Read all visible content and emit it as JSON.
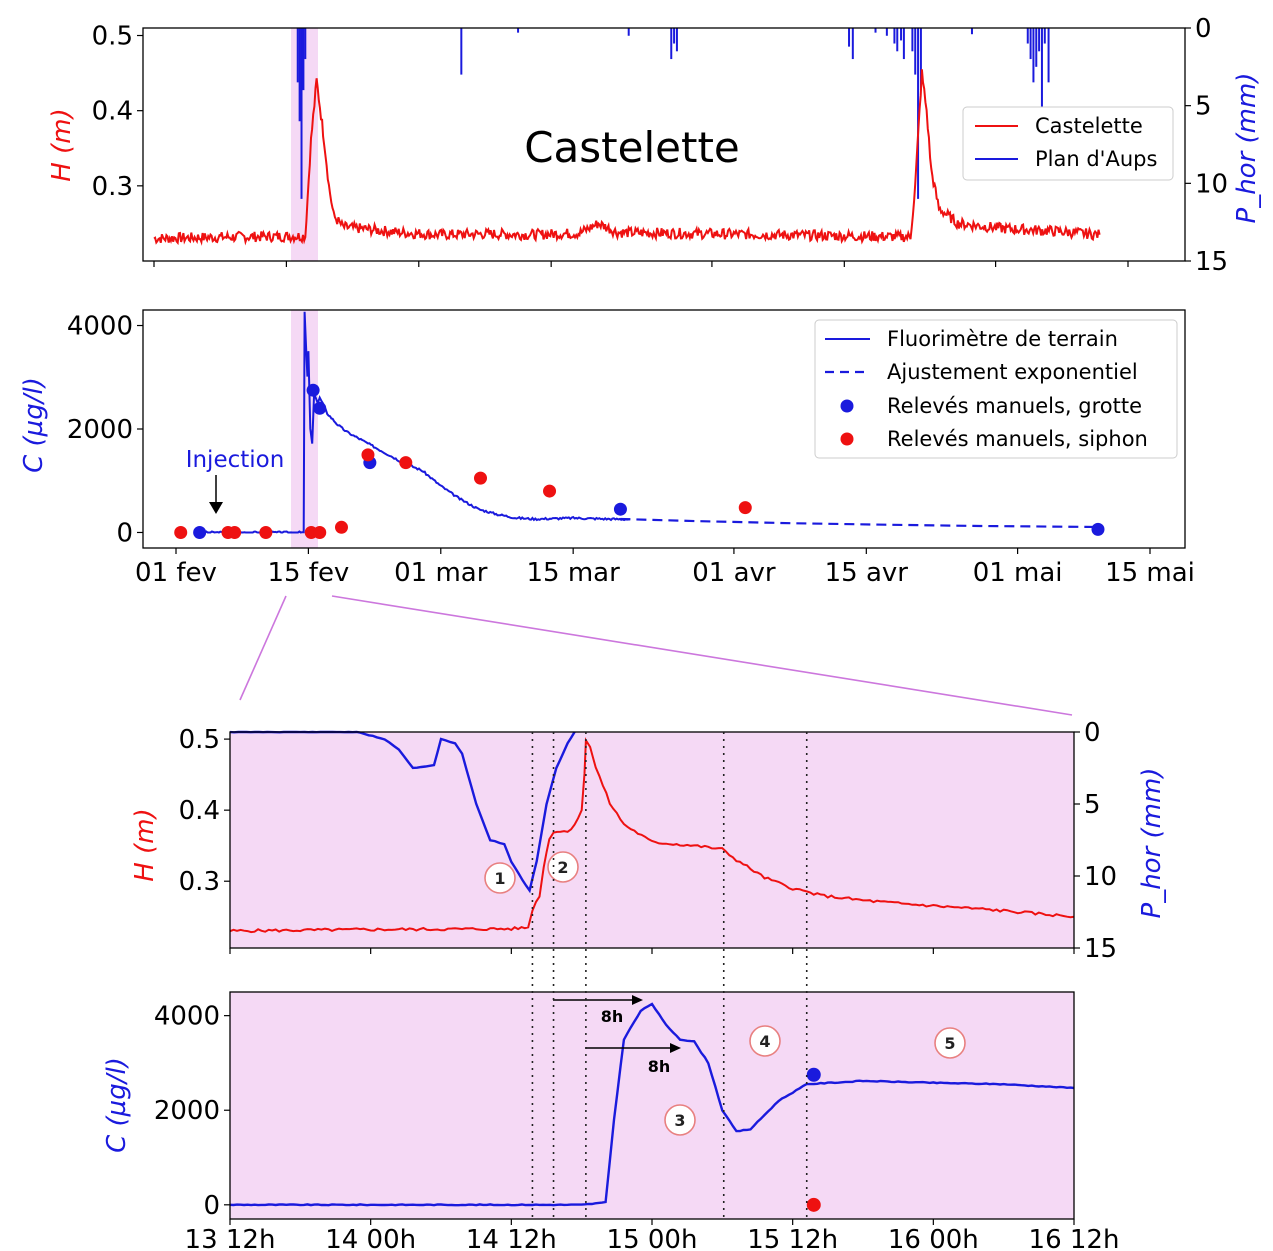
{
  "colors": {
    "height": "#ee1111",
    "conc": "#1a1add",
    "rain": "#1a1add",
    "manual_grotte": "#1a1add",
    "manual_siphon": "#ee1111",
    "highlight": "#f5d9f5",
    "zoom_line": "#cc77dd"
  },
  "chart_data": [
    {
      "type": "line",
      "panel": "top",
      "title": "Castelette",
      "ylabel": "H (m)",
      "ylabel_right": "P_hor (mm)",
      "ylim": [
        0.2,
        0.51
      ],
      "yticks": [
        "0.3",
        "0.4",
        "0.5"
      ],
      "ylim_right": [
        15,
        0
      ],
      "yticks_right": [
        "0",
        "5",
        "10",
        "15"
      ],
      "legend": {
        "position": "center-right",
        "entries": [
          "Castelette",
          "Plan d'Aups"
        ]
      },
      "series": [
        {
          "name": "Castelette",
          "x": [
            0,
            8,
            16,
            16.6,
            17.2,
            18,
            18.5,
            19,
            20,
            22,
            26,
            30,
            35,
            40,
            45,
            47,
            49,
            55,
            60,
            65,
            70,
            75,
            80,
            80.5,
            81.2,
            81.7,
            82.2,
            83,
            85,
            90,
            95,
            100
          ],
          "y": [
            0.23,
            0.232,
            0.233,
            0.36,
            0.44,
            0.36,
            0.3,
            0.26,
            0.245,
            0.243,
            0.238,
            0.235,
            0.236,
            0.235,
            0.237,
            0.25,
            0.238,
            0.237,
            0.236,
            0.235,
            0.234,
            0.233,
            0.232,
            0.3,
            0.45,
            0.4,
            0.32,
            0.27,
            0.25,
            0.243,
            0.24,
            0.235
          ]
        },
        {
          "name": "Plan d'Aups",
          "bars": [
            [
              15.2,
              3.5
            ],
            [
              15.4,
              6
            ],
            [
              15.6,
              11
            ],
            [
              15.8,
              4
            ],
            [
              16.0,
              2
            ],
            [
              32.5,
              3
            ],
            [
              38.5,
              0.3
            ],
            [
              50.2,
              0.5
            ],
            [
              54.7,
              2
            ],
            [
              55.0,
              1
            ],
            [
              55.3,
              1.5
            ],
            [
              73.5,
              1.2
            ],
            [
              73.9,
              2
            ],
            [
              76.3,
              0.3
            ],
            [
              77.5,
              0.5
            ],
            [
              78.3,
              1
            ],
            [
              78.6,
              1.5
            ],
            [
              79.0,
              0.8
            ],
            [
              79.3,
              2
            ],
            [
              80.2,
              1.5
            ],
            [
              80.5,
              3
            ],
            [
              80.8,
              11
            ],
            [
              81.1,
              4
            ],
            [
              86.5,
              0.4
            ],
            [
              92.4,
              1
            ],
            [
              92.7,
              2
            ],
            [
              93.0,
              3.5
            ],
            [
              93.3,
              2.5
            ],
            [
              93.6,
              1.5
            ],
            [
              93.9,
              5.5
            ],
            [
              94.2,
              1
            ],
            [
              94.6,
              3.5
            ]
          ]
        }
      ],
      "highlight": [
        16,
        18.5
      ]
    },
    {
      "type": "line",
      "panel": "middle",
      "ylabel": "C (µg/l)",
      "ylim": [
        -300,
        4300
      ],
      "yticks": [
        "0",
        "2000",
        "4000"
      ],
      "xticks": [
        "01 fev",
        "15 fev",
        "01 mar",
        "15 mar",
        "01 avr",
        "15 avr",
        "01 mai",
        "15 mai"
      ],
      "xtick_days": [
        0,
        14,
        28,
        42,
        59,
        73,
        89,
        103
      ],
      "annotation": "Injection",
      "legend": {
        "position": "top-right",
        "entries": [
          "Fluorimètre de terrain",
          "Ajustement exponentiel",
          "Relevés manuels, grotte",
          "Relevés manuels, siphon"
        ]
      },
      "series": [
        {
          "name": "Fluorimètre de terrain",
          "x": [
            2.3,
            13.5,
            13.6,
            13.9,
            14.0,
            14.2,
            14.4,
            14.6,
            14.8,
            15.0,
            15.2,
            15.5,
            16,
            17,
            18,
            20,
            22,
            24,
            26,
            28,
            30,
            32,
            34,
            36,
            38,
            40,
            42,
            44,
            46,
            48
          ],
          "y": [
            0,
            0,
            4250,
            3000,
            3500,
            2000,
            1700,
            2700,
            2600,
            2500,
            2600,
            2500,
            2300,
            2100,
            1950,
            1750,
            1550,
            1350,
            1200,
            900,
            650,
            450,
            350,
            280,
            260,
            270,
            280,
            270,
            260,
            255
          ]
        },
        {
          "name": "Ajustement exponentiel",
          "x": [
            47,
            55,
            65,
            75,
            85,
            98
          ],
          "y": [
            260,
            220,
            180,
            150,
            125,
            105
          ]
        },
        {
          "name": "Relevés manuels, grotte",
          "x": [
            2.5,
            14.5,
            15.2,
            20.5,
            47,
            97.5
          ],
          "y": [
            0,
            2750,
            2400,
            1350,
            450,
            60
          ]
        },
        {
          "name": "Relevés manuels, siphon",
          "x": [
            0.5,
            5.5,
            6.2,
            9.5,
            14.3,
            15.2,
            17.5,
            20.3,
            24.3,
            32.2,
            39.5,
            60.2
          ],
          "y": [
            0,
            0,
            0,
            0,
            0,
            0,
            100,
            1500,
            1350,
            1050,
            800,
            480
          ]
        }
      ],
      "highlight": [
        13.5,
        15.9
      ]
    },
    {
      "type": "line",
      "panel": "zoom-top",
      "ylabel": "H (m)",
      "ylabel_right": "P_hor (mm)",
      "ylim": [
        0.206,
        0.51
      ],
      "yticks": [
        "0.3",
        "0.4",
        "0.5"
      ],
      "ylim_right": [
        15,
        0
      ],
      "yticks_right": [
        "0",
        "5",
        "10",
        "15"
      ],
      "vlines_hours": [
        21.5,
        23,
        25.3,
        35.1,
        41
      ],
      "markers": [
        "1",
        "2"
      ],
      "series": [
        {
          "name": "Castelette",
          "x": [
            0,
            10,
            20,
            21.2,
            21.5,
            22,
            22.3,
            22.7,
            23,
            24,
            24.5,
            25,
            25.2,
            25.3,
            25.6,
            26,
            27,
            28,
            30,
            33,
            35,
            36,
            38,
            40,
            42,
            45,
            48,
            51,
            54,
            57,
            60
          ],
          "y": [
            0.23,
            0.232,
            0.233,
            0.235,
            0.26,
            0.28,
            0.32,
            0.36,
            0.37,
            0.37,
            0.38,
            0.4,
            0.45,
            0.5,
            0.49,
            0.46,
            0.41,
            0.38,
            0.355,
            0.35,
            0.345,
            0.33,
            0.305,
            0.29,
            0.28,
            0.273,
            0.268,
            0.264,
            0.26,
            0.255,
            0.25
          ]
        },
        {
          "name": "Plan d'Aups",
          "x": [
            0,
            5,
            7,
            9,
            11,
            12,
            13,
            14.5,
            15,
            16,
            16.5,
            17.5,
            18.5,
            19.5,
            20,
            20.8,
            21.3,
            21.8,
            22.5,
            23.2,
            24,
            24.5
          ],
          "y": [
            0,
            0,
            0,
            0,
            0.5,
            1.2,
            2.5,
            2.3,
            0.5,
            0.8,
            1.5,
            5.0,
            7.5,
            7.8,
            9.0,
            10.3,
            11.0,
            9.0,
            5.0,
            2.5,
            0.8,
            0
          ]
        }
      ]
    },
    {
      "type": "line",
      "panel": "zoom-bottom",
      "ylabel": "C (µg/l)",
      "ylim": [
        -300,
        4500
      ],
      "yticks": [
        "0",
        "2000",
        "4000"
      ],
      "xticks": [
        "13 12h",
        "14 00h",
        "14 12h",
        "15 00h",
        "15 12h",
        "16 00h",
        "16 12h"
      ],
      "annotations": [
        "8h",
        "8h"
      ],
      "markers": [
        "3",
        "4",
        "5"
      ],
      "series": [
        {
          "name": "Fluorimètre de terrain",
          "x": [
            0,
            25,
            26.7,
            27.3,
            28,
            29.2,
            30,
            31,
            32,
            33,
            34,
            35,
            36,
            37,
            38,
            39,
            41,
            45,
            50,
            55,
            60
          ],
          "y": [
            0,
            0,
            50,
            1800,
            3500,
            4100,
            4250,
            3800,
            3500,
            3450,
            3000,
            2000,
            1550,
            1600,
            1900,
            2200,
            2550,
            2620,
            2580,
            2550,
            2470
          ]
        },
        {
          "name": "Relevés manuels, grotte",
          "x": [
            41.5
          ],
          "y": [
            2750
          ]
        },
        {
          "name": "Relevés manuels, siphon",
          "x": [
            41.5
          ],
          "y": [
            0
          ]
        }
      ]
    }
  ]
}
